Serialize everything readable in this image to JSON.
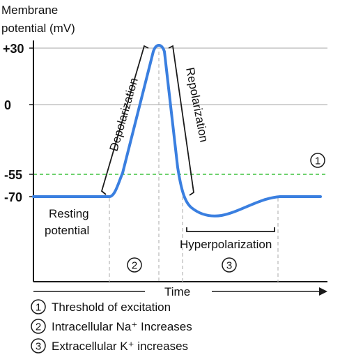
{
  "y_axis": {
    "title_line1": "Membrane",
    "title_line2": "potential (mV)",
    "ticks": [
      "+30",
      "0",
      "-55",
      "-70"
    ]
  },
  "x_axis": {
    "title": "Time"
  },
  "phases": {
    "depolarization": "Depolarization",
    "repolarization": "Repolarization",
    "hyperpolarization": "Hyperpolarization",
    "resting_line1": "Resting",
    "resting_line2": "potential"
  },
  "markers": {
    "one": "1",
    "two": "2",
    "three": "3"
  },
  "legend": [
    {
      "num": "1",
      "text": "Threshold of excitation"
    },
    {
      "num": "2",
      "text": "Intracellular Na⁺ Increases"
    },
    {
      "num": "3",
      "text": "Extracellular K⁺ increases"
    }
  ],
  "colors": {
    "trace": "#3a7fe0",
    "threshold": "#3ec23e",
    "gridline": "#b8b8b8",
    "axis": "#1a1a1a"
  }
}
